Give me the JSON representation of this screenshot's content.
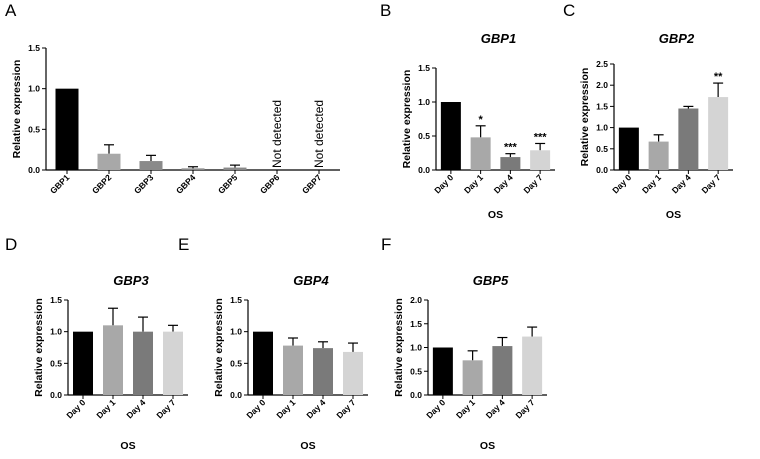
{
  "chart_data": [
    {
      "id": "A",
      "letter": "A",
      "type": "bar",
      "title": "",
      "xlabel": "",
      "ylabel": "Relative expression",
      "ylim": [
        0,
        1.5
      ],
      "yticks": [
        "0.0",
        "0.5",
        "1.0",
        "1.5"
      ],
      "ytick_values": [
        0,
        0.5,
        1.0,
        1.5
      ],
      "categories": [
        "GBP1",
        "GBP2",
        "GBP3",
        "GBP4",
        "GBP5",
        "GBP6",
        "GBP7"
      ],
      "values": [
        1.0,
        0.2,
        0.11,
        0.02,
        0.03,
        null,
        null
      ],
      "errors": [
        0,
        0.11,
        0.07,
        0.02,
        0.03,
        0,
        0
      ],
      "colors": [
        "#000000",
        "#a8a8a8",
        "#8a8a8a",
        "#8a8a8a",
        "#8a8a8a",
        "#8a8a8a",
        "#8a8a8a"
      ],
      "annotations": [
        "",
        "",
        "",
        "",
        "",
        "Not detected",
        "Not detected"
      ],
      "significance": [
        "",
        "",
        "",
        "",
        "",
        "",
        ""
      ]
    },
    {
      "id": "B",
      "letter": "B",
      "type": "bar",
      "title": "GBP1",
      "xlabel": "OS",
      "ylabel": "Relative expression",
      "ylim": [
        0,
        1.5
      ],
      "yticks": [
        "0.0",
        "0.5",
        "1.0",
        "1.5"
      ],
      "ytick_values": [
        0,
        0.5,
        1.0,
        1.5
      ],
      "categories": [
        "Day 0",
        "Day 1",
        "Day 4",
        "Day 7"
      ],
      "values": [
        1.0,
        0.48,
        0.19,
        0.29
      ],
      "errors": [
        0,
        0.17,
        0.05,
        0.1
      ],
      "colors": [
        "#000000",
        "#a8a8a8",
        "#7a7a7a",
        "#d4d4d4"
      ],
      "annotations": [
        "",
        "",
        "",
        ""
      ],
      "significance": [
        "",
        "*",
        "***",
        "***"
      ]
    },
    {
      "id": "C",
      "letter": "C",
      "type": "bar",
      "title": "GBP2",
      "xlabel": "OS",
      "ylabel": "Relative expression",
      "ylim": [
        0,
        2.5
      ],
      "yticks": [
        "0.0",
        "0.5",
        "1.0",
        "1.5",
        "2.0",
        "2.5"
      ],
      "ytick_values": [
        0,
        0.5,
        1.0,
        1.5,
        2.0,
        2.5
      ],
      "categories": [
        "Day 0",
        "Day 1",
        "Day 4",
        "Day 7"
      ],
      "values": [
        1.0,
        0.67,
        1.45,
        1.72
      ],
      "errors": [
        0,
        0.16,
        0.05,
        0.33
      ],
      "colors": [
        "#000000",
        "#a8a8a8",
        "#7a7a7a",
        "#d4d4d4"
      ],
      "annotations": [
        "",
        "",
        "",
        ""
      ],
      "significance": [
        "",
        "",
        "",
        "**"
      ]
    },
    {
      "id": "D",
      "letter": "D",
      "type": "bar",
      "title": "GBP3",
      "xlabel": "OS",
      "ylabel": "Relative expression",
      "ylim": [
        0,
        1.5
      ],
      "yticks": [
        "0.0",
        "0.5",
        "1.0",
        "1.5"
      ],
      "ytick_values": [
        0,
        0.5,
        1.0,
        1.5
      ],
      "categories": [
        "Day 0",
        "Day 1",
        "Day 4",
        "Day 7"
      ],
      "values": [
        1.0,
        1.1,
        1.0,
        1.0
      ],
      "errors": [
        0,
        0.27,
        0.23,
        0.1
      ],
      "colors": [
        "#000000",
        "#a8a8a8",
        "#7a7a7a",
        "#d4d4d4"
      ],
      "annotations": [
        "",
        "",
        "",
        ""
      ],
      "significance": [
        "",
        "",
        "",
        ""
      ]
    },
    {
      "id": "E",
      "letter": "E",
      "type": "bar",
      "title": "GBP4",
      "xlabel": "OS",
      "ylabel": "Relative expression",
      "ylim": [
        0,
        1.5
      ],
      "yticks": [
        "0.0",
        "0.5",
        "1.0",
        "1.5"
      ],
      "ytick_values": [
        0,
        0.5,
        1.0,
        1.5
      ],
      "categories": [
        "Day 0",
        "Day 1",
        "Day 4",
        "Day 7"
      ],
      "values": [
        1.0,
        0.78,
        0.74,
        0.68
      ],
      "errors": [
        0,
        0.12,
        0.1,
        0.14
      ],
      "colors": [
        "#000000",
        "#a8a8a8",
        "#7a7a7a",
        "#d4d4d4"
      ],
      "annotations": [
        "",
        "",
        "",
        ""
      ],
      "significance": [
        "",
        "",
        "",
        ""
      ]
    },
    {
      "id": "F",
      "letter": "F",
      "type": "bar",
      "title": "GBP5",
      "xlabel": "OS",
      "ylabel": "Relative expression",
      "ylim": [
        0,
        2.0
      ],
      "yticks": [
        "0.0",
        "0.5",
        "1.0",
        "1.5",
        "2.0"
      ],
      "ytick_values": [
        0,
        0.5,
        1.0,
        1.5,
        2.0
      ],
      "categories": [
        "Day 0",
        "Day 1",
        "Day 4",
        "Day 7"
      ],
      "values": [
        1.0,
        0.73,
        1.03,
        1.23
      ],
      "errors": [
        0,
        0.2,
        0.18,
        0.2
      ],
      "colors": [
        "#000000",
        "#a8a8a8",
        "#7a7a7a",
        "#d4d4d4"
      ],
      "annotations": [
        "",
        "",
        "",
        ""
      ],
      "significance": [
        "",
        "",
        "",
        ""
      ]
    }
  ]
}
